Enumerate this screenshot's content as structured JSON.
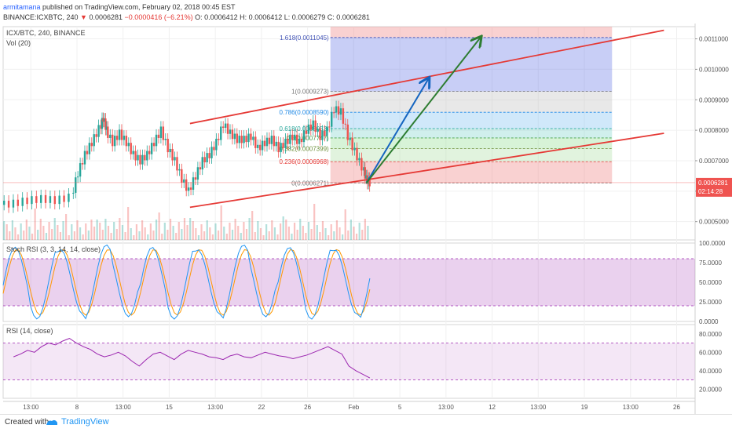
{
  "header": {
    "author": "armitamana",
    "published_text": "published on TradingView.com, February 02, 2018 00:45 EST",
    "symbol": "BINANCE:ICXBTC, 240",
    "last_value": "0.0006281",
    "change": "−0.0000416 (−6.21%)",
    "ohlc": "O: 0.0006412 H: 0.0006412 L: 0.0006279 C: 0.0006281"
  },
  "footer": {
    "created_with": "Created with",
    "brand": "TradingView"
  },
  "colors": {
    "up": "#26a69a",
    "down": "#ef5350",
    "channel": "#e53935",
    "arrow_blue": "#1565c0",
    "arrow_green": "#2e7d32",
    "rsi": "#9c27b0",
    "stoch_k": "#2196f3",
    "stoch_d": "#ff9800"
  },
  "chart_data": [
    {
      "type": "candlestick",
      "legend": [
        "ICX/BTC, 240, BINANCE",
        "Vol (20)"
      ],
      "ylim": [
        0.00044,
        0.00114
      ],
      "y_ticks": [
        "0.0011000",
        "0.0010000",
        "0.0009000",
        "0.0008000",
        "0.0007000",
        "0.0006000",
        "0.0005000"
      ],
      "x_ticks": [
        "13:00",
        "8",
        "13:00",
        "15",
        "13:00",
        "22",
        "26",
        "Feb",
        "5",
        "13:00",
        "12",
        "13:00",
        "19",
        "13:00",
        "26"
      ],
      "price_badge": {
        "value": "0.0006281",
        "countdown": "02:14:28"
      },
      "fibonacci": [
        {
          "level": "1.618",
          "price": 0.0011045,
          "label": "1.618(0.0011045)"
        },
        {
          "level": "1",
          "price": 0.0009273,
          "label": "1(0.0009273)"
        },
        {
          "level": "0.786",
          "price": 0.000859,
          "label": "0.786(0.0008590)"
        },
        {
          "level": "0.618",
          "price": 0.0008053,
          "label": "0.618(0.0008053)"
        },
        {
          "level": "0.5",
          "price": 0.0007747,
          "label": "0.5(0.0007747)"
        },
        {
          "level": "0.382",
          "price": 0.0007399,
          "label": "0.382(0.0007399)"
        },
        {
          "level": "0.236",
          "price": 0.0006968,
          "label": "0.236(0.0006968)"
        },
        {
          "level": "0",
          "price": 0.0006271,
          "label": "0(0.0006271)"
        }
      ],
      "channel": {
        "upper": [
          [
            0.27,
            0.000822
          ],
          [
            0.955,
            0.001128
          ]
        ],
        "lower": [
          [
            0.27,
            0.000547
          ],
          [
            0.955,
            0.00079
          ]
        ]
      },
      "arrows": [
        {
          "color": "blue",
          "from": [
            0.525,
            0.000627
          ],
          "to": [
            0.615,
            0.00097
          ]
        },
        {
          "color": "green",
          "from": [
            0.525,
            0.000627
          ],
          "to": [
            0.69,
            0.001105
          ]
        }
      ],
      "price_path": [
        [
          0.0,
          0.000555
        ],
        [
          0.02,
          0.00056
        ],
        [
          0.04,
          0.00057
        ],
        [
          0.06,
          0.000575
        ],
        [
          0.08,
          0.00057
        ],
        [
          0.1,
          0.00058
        ],
        [
          0.11,
          0.00066
        ],
        [
          0.12,
          0.00072
        ],
        [
          0.13,
          0.00076
        ],
        [
          0.14,
          0.000805
        ],
        [
          0.145,
          0.00084
        ],
        [
          0.15,
          0.0008
        ],
        [
          0.16,
          0.00076
        ],
        [
          0.17,
          0.00079
        ],
        [
          0.18,
          0.00076
        ],
        [
          0.19,
          0.00072
        ],
        [
          0.2,
          0.0007
        ],
        [
          0.21,
          0.00072
        ],
        [
          0.22,
          0.00076
        ],
        [
          0.23,
          0.0008
        ],
        [
          0.24,
          0.00074
        ],
        [
          0.25,
          0.0007
        ],
        [
          0.26,
          0.00064
        ],
        [
          0.27,
          0.0006
        ],
        [
          0.28,
          0.00065
        ],
        [
          0.29,
          0.0007
        ],
        [
          0.3,
          0.00072
        ],
        [
          0.31,
          0.00076
        ],
        [
          0.32,
          0.00082
        ],
        [
          0.33,
          0.00079
        ],
        [
          0.34,
          0.00077
        ],
        [
          0.35,
          0.00077
        ],
        [
          0.36,
          0.00078
        ],
        [
          0.37,
          0.00074
        ],
        [
          0.38,
          0.00076
        ],
        [
          0.39,
          0.00077
        ],
        [
          0.4,
          0.00074
        ],
        [
          0.41,
          0.00076
        ],
        [
          0.42,
          0.00078
        ],
        [
          0.43,
          0.00076
        ],
        [
          0.44,
          0.0008
        ],
        [
          0.45,
          0.00082
        ],
        [
          0.46,
          0.00078
        ],
        [
          0.47,
          0.0008
        ],
        [
          0.48,
          0.00087
        ],
        [
          0.49,
          0.00086
        ],
        [
          0.5,
          0.00078
        ],
        [
          0.51,
          0.00073
        ],
        [
          0.52,
          0.00068
        ],
        [
          0.525,
          0.00064
        ],
        [
          0.53,
          0.000628
        ]
      ]
    },
    {
      "type": "line",
      "title": "Stoch RSI (3, 3, 14, 14, close)",
      "ylim": [
        0,
        100
      ],
      "y_ticks": [
        "100.0000",
        "75.0000",
        "50.0000",
        "25.0000",
        "0.0000"
      ],
      "bands": [
        20,
        80
      ]
    },
    {
      "type": "line",
      "title": "RSI (14, close)",
      "ylim": [
        10,
        90
      ],
      "y_ticks": [
        "80.0000",
        "60.0000",
        "40.0000",
        "20.0000"
      ],
      "bands": [
        30,
        70
      ],
      "values": [
        55,
        58,
        62,
        60,
        66,
        70,
        68,
        72,
        75,
        70,
        66,
        63,
        58,
        55,
        57,
        60,
        56,
        50,
        45,
        52,
        58,
        60,
        56,
        52,
        58,
        62,
        60,
        58,
        55,
        54,
        52,
        56,
        58,
        55,
        54,
        57,
        60,
        58,
        56,
        55,
        53,
        55,
        57,
        60,
        63,
        66,
        62,
        58,
        45,
        40,
        36,
        32
      ]
    }
  ]
}
